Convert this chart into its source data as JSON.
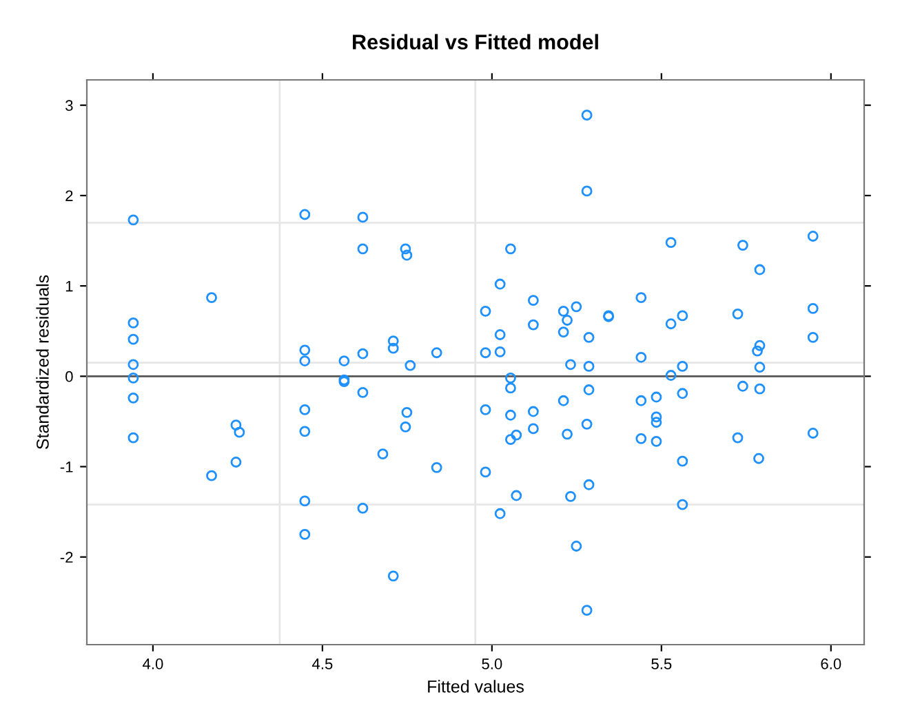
{
  "chart_data": {
    "type": "scatter",
    "title": "Residual vs Fitted model",
    "xlabel": "Fitted values",
    "ylabel": "Standardized residuals",
    "xlim": [
      3.805,
      6.098
    ],
    "ylim": [
      -2.97,
      3.28
    ],
    "xticks": [
      {
        "value": 4,
        "label": "4.0"
      },
      {
        "value": 4.5,
        "label": "4.5"
      },
      {
        "value": 5,
        "label": "5.0"
      },
      {
        "value": 5.5,
        "label": "5.5"
      },
      {
        "value": 6,
        "label": "6.0"
      }
    ],
    "yticks": [
      -2,
      -1,
      0,
      1,
      2,
      3
    ],
    "marker": "circle",
    "grid": false,
    "legend": false,
    "ref_lines": [
      {
        "axis": "x",
        "value": 4.374,
        "label": null,
        "color": "#e6e6e6",
        "line_style": "solid"
      },
      {
        "axis": "x",
        "value": 4.951,
        "label": null,
        "color": "#e6e6e6",
        "line_style": "solid"
      },
      {
        "axis": "y",
        "value": 1.7,
        "label": null,
        "color": "#e6e6e6",
        "line_style": "solid"
      },
      {
        "axis": "y",
        "value": 0.15,
        "label": null,
        "color": "#e6e6e6",
        "line_style": "solid"
      },
      {
        "axis": "y",
        "value": -1.42,
        "label": null,
        "color": "#e6e6e6",
        "line_style": "solid"
      },
      {
        "axis": "y",
        "value": 0,
        "label": null,
        "color": "#555555",
        "line_style": "solid"
      }
    ],
    "series": [
      {
        "color": "#1e90ff",
        "x": [
          3.942,
          3.942,
          3.942,
          3.942,
          3.942,
          3.942,
          3.942,
          4.173,
          4.173,
          4.245,
          4.255,
          4.245,
          4.448,
          4.448,
          4.448,
          4.448,
          4.448,
          4.448,
          4.448,
          4.564,
          4.564,
          4.564,
          4.619,
          4.619,
          4.619,
          4.619,
          4.619,
          4.678,
          4.709,
          4.709,
          4.709,
          4.745,
          4.749,
          4.749,
          4.745,
          4.759,
          4.837,
          4.837,
          4.981,
          4.981,
          4.981,
          4.981,
          5.024,
          5.024,
          5.024,
          5.024,
          5.055,
          5.055,
          5.055,
          5.055,
          5.055,
          5.072,
          5.072,
          5.122,
          5.122,
          5.122,
          5.122,
          5.211,
          5.222,
          5.211,
          5.249,
          5.232,
          5.211,
          5.222,
          5.232,
          5.249,
          5.28,
          5.28,
          5.286,
          5.286,
          5.286,
          5.28,
          5.286,
          5.28,
          5.344,
          5.344,
          5.44,
          5.44,
          5.44,
          5.44,
          5.485,
          5.485,
          5.485,
          5.485,
          5.528,
          5.528,
          5.528,
          5.562,
          5.562,
          5.562,
          5.562,
          5.562,
          5.725,
          5.74,
          5.74,
          5.725,
          5.79,
          5.79,
          5.783,
          5.79,
          5.79,
          5.787,
          5.947,
          5.947,
          5.947,
          5.947
        ],
        "values": [
          1.73,
          0.59,
          0.41,
          0.13,
          -0.02,
          -0.24,
          -0.68,
          0.87,
          -1.1,
          -0.54,
          -0.62,
          -0.95,
          1.79,
          0.29,
          0.17,
          -0.37,
          -0.61,
          -1.38,
          -1.75,
          0.17,
          -0.04,
          -0.06,
          1.76,
          1.41,
          0.25,
          -0.18,
          -1.46,
          -0.86,
          0.39,
          0.31,
          -2.21,
          1.41,
          1.34,
          -0.4,
          -0.56,
          0.12,
          0.26,
          -1.01,
          0.72,
          0.26,
          -0.37,
          -1.06,
          1.02,
          0.46,
          0.27,
          -1.52,
          1.41,
          -0.02,
          -0.13,
          -0.43,
          -0.7,
          -0.65,
          -1.32,
          0.84,
          0.57,
          -0.39,
          -0.58,
          0.72,
          0.62,
          0.49,
          0.77,
          0.13,
          -0.27,
          -0.64,
          -1.33,
          -1.88,
          2.89,
          2.05,
          0.43,
          0.11,
          -0.15,
          -0.53,
          -1.2,
          -2.59,
          0.67,
          0.66,
          0.87,
          0.21,
          -0.27,
          -0.69,
          -0.23,
          -0.45,
          -0.51,
          -0.72,
          1.48,
          0.58,
          0.01,
          0.67,
          0.11,
          -0.19,
          -0.94,
          -1.42,
          0.69,
          1.45,
          -0.11,
          -0.68,
          1.18,
          0.34,
          0.28,
          0.1,
          -0.14,
          -0.91,
          1.55,
          0.75,
          0.43,
          -0.63
        ]
      }
    ]
  }
}
